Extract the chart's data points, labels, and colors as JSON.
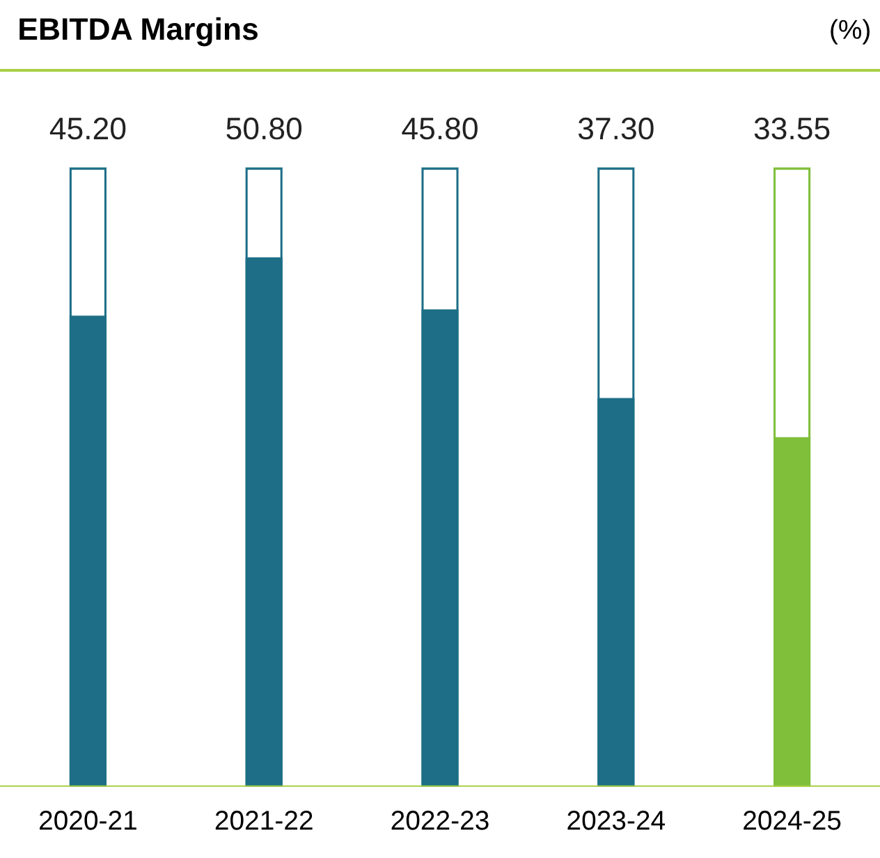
{
  "chart_data": {
    "type": "bar",
    "title": "EBITDA Margins",
    "annotations": [
      "(%)"
    ],
    "categories": [
      "2020-21",
      "2021-22",
      "2022-23",
      "2023-24",
      "2024-25"
    ],
    "values": [
      45.2,
      50.8,
      45.8,
      37.3,
      33.55
    ],
    "colors": [
      "#1d6e86",
      "#1d6e86",
      "#1d6e86",
      "#1d6e86",
      "#7fbf3a"
    ],
    "value_labels": [
      "45.20",
      "50.80",
      "45.80",
      "37.30",
      "33.55"
    ]
  }
}
